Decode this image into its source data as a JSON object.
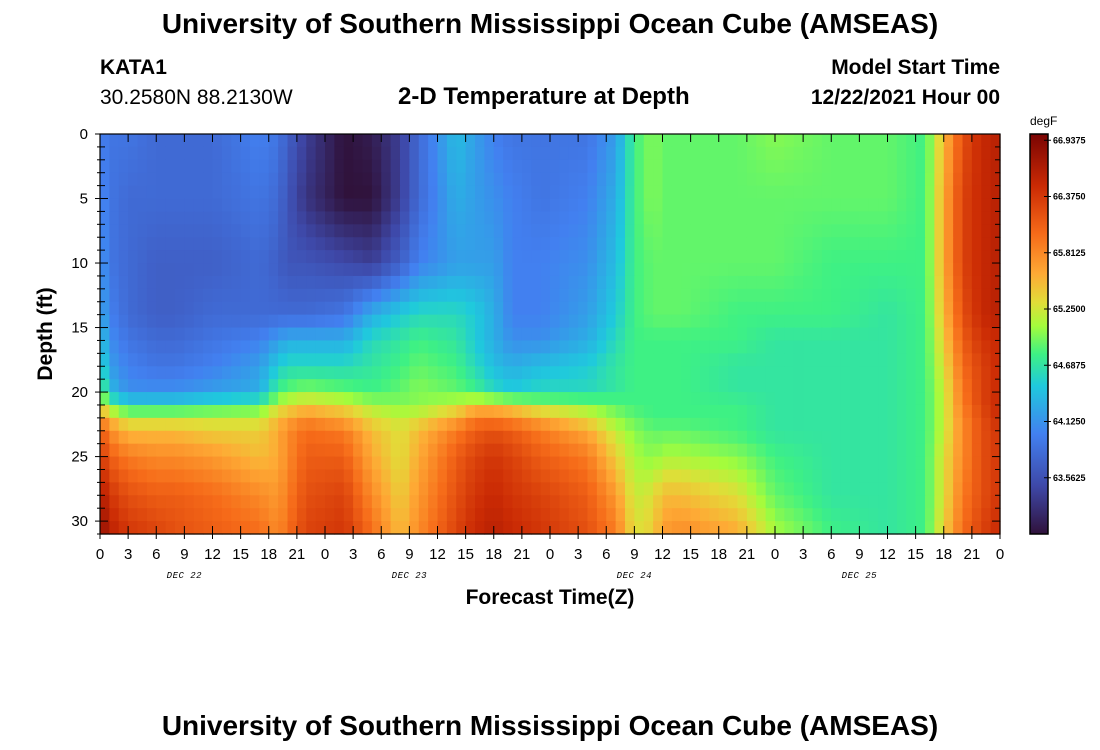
{
  "header": {
    "title": "University of Southern Mississippi Ocean Cube (AMSEAS)",
    "station_id": "KATA1",
    "station_coords": "30.2580N  88.2130W",
    "subtitle": "2-D Temperature at Depth",
    "model_start_label": "Model Start Time",
    "model_start_value": "12/22/2021 Hour 00"
  },
  "footer": {
    "title": "University of Southern Mississippi Ocean Cube (AMSEAS)"
  },
  "chart_data": {
    "type": "heatmap",
    "xlabel": "Forecast Time(Z)",
    "ylabel": "Depth (ft)",
    "x_tick_labels": [
      "0",
      "3",
      "6",
      "9",
      "12",
      "15",
      "18",
      "21",
      "0",
      "3",
      "6",
      "9",
      "12",
      "15",
      "18",
      "21",
      "0",
      "3",
      "6",
      "9",
      "12",
      "15",
      "18",
      "21",
      "0",
      "3",
      "6",
      "9",
      "12",
      "15",
      "18",
      "21",
      "0"
    ],
    "x_hours_range": [
      0,
      96
    ],
    "day_labels": [
      {
        "label": "DEC 22",
        "hour": 9
      },
      {
        "label": "DEC 23",
        "hour": 33
      },
      {
        "label": "DEC 24",
        "hour": 57
      },
      {
        "label": "DEC 25",
        "hour": 81
      }
    ],
    "y_ticks": [
      0,
      5,
      10,
      15,
      20,
      25,
      30
    ],
    "ylim": [
      0,
      31
    ],
    "y_inverted": true,
    "colorbar": {
      "unit": "degF",
      "range": [
        63.0,
        67.0
      ],
      "tick_labels": [
        "66.9375",
        "66.3750",
        "65.8125",
        "65.2500",
        "64.6875",
        "64.1250",
        "63.5625"
      ],
      "tick_values": [
        66.9375,
        66.375,
        65.8125,
        65.25,
        64.6875,
        64.125,
        63.5625
      ]
    },
    "control_hours": [
      0,
      1,
      3,
      6,
      8,
      12,
      17,
      19,
      20,
      22,
      26,
      29,
      32,
      34,
      38,
      40,
      42,
      44,
      47,
      52,
      55,
      57,
      59,
      60,
      62,
      68,
      72,
      78,
      84,
      88,
      90,
      92,
      94,
      96
    ],
    "control_depths": [
      0,
      5,
      10,
      14,
      16,
      18,
      20,
      21,
      22,
      23,
      25,
      28,
      31
    ],
    "values": [
      [
        64.0,
        63.9,
        63.9,
        63.8,
        63.8,
        63.8,
        64.0,
        63.9,
        63.7,
        63.4,
        63.0,
        63.1,
        63.4,
        63.8,
        64.4,
        64.2,
        64.0,
        63.9,
        63.9,
        63.9,
        64.2,
        64.8,
        65.0,
        64.9,
        64.9,
        64.9,
        65.0,
        64.9,
        64.9,
        64.8,
        65.5,
        66.2,
        66.5,
        66.6
      ],
      [
        64.1,
        63.9,
        63.8,
        63.8,
        63.8,
        63.8,
        63.9,
        63.8,
        63.6,
        63.3,
        63.0,
        63.0,
        63.4,
        63.8,
        64.3,
        64.2,
        64.1,
        64.0,
        63.9,
        64.0,
        64.3,
        64.8,
        65.0,
        64.9,
        64.9,
        64.9,
        64.9,
        64.9,
        64.9,
        64.8,
        65.6,
        66.3,
        66.5,
        66.6
      ],
      [
        64.2,
        63.9,
        63.8,
        63.7,
        63.7,
        63.7,
        63.8,
        63.7,
        63.6,
        63.6,
        63.5,
        63.4,
        63.7,
        64.0,
        64.2,
        64.2,
        64.2,
        64.0,
        64.0,
        64.1,
        64.4,
        64.8,
        64.9,
        64.9,
        64.9,
        64.9,
        64.9,
        64.8,
        64.8,
        64.8,
        65.6,
        66.3,
        66.5,
        66.6
      ],
      [
        64.3,
        64.0,
        63.8,
        63.7,
        63.7,
        63.8,
        63.8,
        63.8,
        63.8,
        63.8,
        63.9,
        64.3,
        64.5,
        64.6,
        64.6,
        64.5,
        64.3,
        64.0,
        64.0,
        64.2,
        64.5,
        64.8,
        64.9,
        64.9,
        64.9,
        64.8,
        64.8,
        64.8,
        64.7,
        64.8,
        65.5,
        66.2,
        66.5,
        66.6
      ],
      [
        64.5,
        64.1,
        63.9,
        63.8,
        63.8,
        63.9,
        64.0,
        64.2,
        64.3,
        64.3,
        64.3,
        64.6,
        64.7,
        64.8,
        64.7,
        64.5,
        64.3,
        64.1,
        64.1,
        64.3,
        64.6,
        64.8,
        64.8,
        64.8,
        64.8,
        64.8,
        64.7,
        64.7,
        64.7,
        64.8,
        65.4,
        66.1,
        66.4,
        66.5
      ],
      [
        64.7,
        64.2,
        64.0,
        63.9,
        63.9,
        64.0,
        64.2,
        64.5,
        64.6,
        64.6,
        64.6,
        64.7,
        64.8,
        64.9,
        64.8,
        64.6,
        64.4,
        64.3,
        64.4,
        64.5,
        64.7,
        64.8,
        64.8,
        64.8,
        64.8,
        64.7,
        64.7,
        64.7,
        64.7,
        64.8,
        65.3,
        66.0,
        66.3,
        66.5
      ],
      [
        65.0,
        64.4,
        64.1,
        64.1,
        64.1,
        64.2,
        64.3,
        64.8,
        64.9,
        65.0,
        64.9,
        64.8,
        64.9,
        65.0,
        64.9,
        64.8,
        64.6,
        64.5,
        64.6,
        64.6,
        64.7,
        64.8,
        64.8,
        64.8,
        64.8,
        64.7,
        64.7,
        64.7,
        64.7,
        64.8,
        65.2,
        65.9,
        66.3,
        66.5
      ],
      [
        65.4,
        64.9,
        64.6,
        64.6,
        64.6,
        64.7,
        64.8,
        65.2,
        65.3,
        65.4,
        65.3,
        65.1,
        65.0,
        65.0,
        65.2,
        65.4,
        65.4,
        65.3,
        65.1,
        65.0,
        64.9,
        64.8,
        64.8,
        64.8,
        64.8,
        64.8,
        64.7,
        64.7,
        64.7,
        64.8,
        65.2,
        65.9,
        66.3,
        66.5
      ],
      [
        65.8,
        65.5,
        65.2,
        65.2,
        65.2,
        65.2,
        65.2,
        65.5,
        65.6,
        65.8,
        65.6,
        65.3,
        65.2,
        65.3,
        65.6,
        65.9,
        65.9,
        65.8,
        65.6,
        65.3,
        65.0,
        64.9,
        64.8,
        64.8,
        64.8,
        64.8,
        64.7,
        64.7,
        64.7,
        64.8,
        65.2,
        65.8,
        66.2,
        66.5
      ],
      [
        66.2,
        65.8,
        65.5,
        65.5,
        65.5,
        65.4,
        65.4,
        65.6,
        65.8,
        66.0,
        65.9,
        65.5,
        65.3,
        65.5,
        65.9,
        66.1,
        66.2,
        66.1,
        65.9,
        65.6,
        65.2,
        65.0,
        64.9,
        64.9,
        64.9,
        64.8,
        64.7,
        64.7,
        64.7,
        64.8,
        65.2,
        65.8,
        66.2,
        66.4
      ],
      [
        66.4,
        66.1,
        65.9,
        65.8,
        65.8,
        65.7,
        65.5,
        65.6,
        65.8,
        66.1,
        66.1,
        65.6,
        65.3,
        65.6,
        66.1,
        66.3,
        66.4,
        66.3,
        66.1,
        65.9,
        65.4,
        65.1,
        65.0,
        65.1,
        65.1,
        65.0,
        64.8,
        64.7,
        64.7,
        64.8,
        65.3,
        65.8,
        66.2,
        66.4
      ],
      [
        66.7,
        66.4,
        66.2,
        66.1,
        66.1,
        66.0,
        65.8,
        65.7,
        65.9,
        66.2,
        66.3,
        65.8,
        65.4,
        65.7,
        66.2,
        66.4,
        66.5,
        66.4,
        66.3,
        66.1,
        65.7,
        65.2,
        65.3,
        65.5,
        65.5,
        65.3,
        64.9,
        64.7,
        64.7,
        64.8,
        65.3,
        65.9,
        66.2,
        66.4
      ],
      [
        66.9,
        66.6,
        66.4,
        66.3,
        66.2,
        66.1,
        66.0,
        65.8,
        66.0,
        66.3,
        66.4,
        66.0,
        65.5,
        65.8,
        66.3,
        66.5,
        66.6,
        66.5,
        66.4,
        66.2,
        65.9,
        65.3,
        65.4,
        65.7,
        65.8,
        65.6,
        65.1,
        64.8,
        64.7,
        64.8,
        65.4,
        66.0,
        66.3,
        66.5
      ]
    ]
  }
}
